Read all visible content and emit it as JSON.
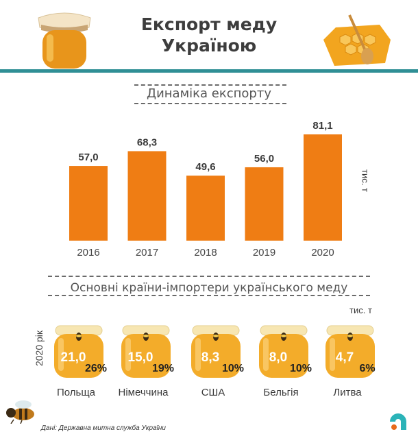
{
  "header": {
    "title_line1": "Експорт меду",
    "title_line2": "Україною"
  },
  "colors": {
    "bar": "#ef7d14",
    "teal": "#2f8f95",
    "honey": "#f3ac2a",
    "lid": "#f7e6b2"
  },
  "icons": {
    "left": "honey-jar-icon",
    "right": "honeycomb-dipper-icon",
    "bee": "bee-icon",
    "logo": "brand-logo-icon"
  },
  "chart_data": [
    {
      "type": "bar",
      "title": "Динаміка експорту",
      "categories": [
        "2016",
        "2017",
        "2018",
        "2019",
        "2020"
      ],
      "values": [
        57.0,
        68.3,
        49.6,
        56.0,
        81.1
      ],
      "value_labels": [
        "57,0",
        "68,3",
        "49,6",
        "56,0",
        "81,1"
      ],
      "unit": "тис. т",
      "ylim": [
        0,
        90
      ],
      "grid": false
    },
    {
      "type": "table",
      "title": "Основні країни-імпортери українського меду",
      "unit": "тис. т",
      "period": "2020 рік",
      "countries": [
        "Польща",
        "Німеччина",
        "США",
        "Бельгія",
        "Литва"
      ],
      "values": [
        "21,0",
        "15,0",
        "8,3",
        "8,0",
        "4,7"
      ],
      "shares": [
        "26%",
        "19%",
        "10%",
        "10%",
        "6%"
      ]
    }
  ],
  "footer": {
    "source": "Дані: Державна митна служба України"
  }
}
